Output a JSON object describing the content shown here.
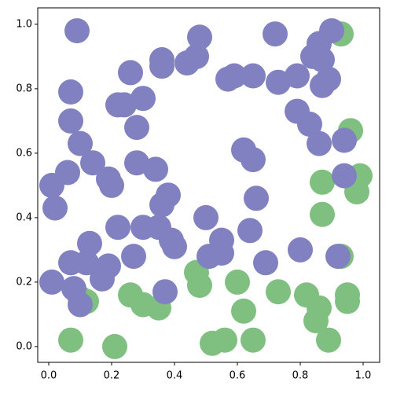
{
  "chart_data": {
    "type": "scatter",
    "xlim": [
      -0.035,
      1.0525
    ],
    "ylim": [
      -0.049,
      1.051
    ],
    "xticks": [
      {
        "value": 0,
        "label": "0.0"
      },
      {
        "value": 0.2,
        "label": "0.2"
      },
      {
        "value": 0.4,
        "label": "0.4"
      },
      {
        "value": 0.6,
        "label": "0.6"
      },
      {
        "value": 0.8,
        "label": "0.8"
      },
      {
        "value": 1,
        "label": "1.0"
      }
    ],
    "yticks": [
      {
        "value": 0,
        "label": "0.0"
      },
      {
        "value": 0.2,
        "label": "0.2"
      },
      {
        "value": 0.4,
        "label": "0.4"
      },
      {
        "value": 0.6,
        "label": "0.6"
      },
      {
        "value": 0.8,
        "label": "0.8"
      },
      {
        "value": 1,
        "label": "1.0"
      }
    ],
    "series": [
      {
        "color": "#7fbf7f",
        "x": [
          0.93,
          0.96,
          0.99,
          0.87,
          0.98,
          0.87,
          0.93,
          0.47,
          0.48,
          0.6,
          0.73,
          0.82,
          0.86,
          0.95,
          0.95,
          0.85,
          0.89,
          0.62,
          0.65,
          0.56,
          0.52,
          0.26,
          0.3,
          0.35,
          0.21,
          0.07,
          0.12,
          0.1
        ],
        "values": [
          0.97,
          0.67,
          0.53,
          0.51,
          0.48,
          0.41,
          0.28,
          0.23,
          0.19,
          0.2,
          0.17,
          0.16,
          0.12,
          0.16,
          0.14,
          0.08,
          0.02,
          0.11,
          0.02,
          0.02,
          0.01,
          0.16,
          0.13,
          0.12,
          0.0,
          0.02,
          0.14,
          0.15
        ]
      },
      {
        "color": "#8181c2",
        "x": [
          0.09,
          0.48,
          0.72,
          0.9,
          0.86,
          0.84,
          0.87,
          0.89,
          0.87,
          0.79,
          0.73,
          0.65,
          0.59,
          0.57,
          0.47,
          0.44,
          0.36,
          0.36,
          0.26,
          0.07,
          0.3,
          0.22,
          0.24,
          0.28,
          0.07,
          0.1,
          0.79,
          0.83,
          0.86,
          0.94,
          0.62,
          0.65,
          0.06,
          0.14,
          0.28,
          0.34,
          0.94,
          0.01,
          0.02,
          0.19,
          0.2,
          0.38,
          0.36,
          0.66,
          0.5,
          0.22,
          0.3,
          0.35,
          0.39,
          0.4,
          0.55,
          0.51,
          0.55,
          0.64,
          0.69,
          0.8,
          0.92,
          0.27,
          0.13,
          0.07,
          0.12,
          0.19,
          0.17,
          0.01,
          0.08,
          0.1,
          0.37
        ],
        "values": [
          0.98,
          0.96,
          0.97,
          0.98,
          0.94,
          0.9,
          0.89,
          0.83,
          0.81,
          0.84,
          0.82,
          0.84,
          0.84,
          0.83,
          0.9,
          0.88,
          0.89,
          0.87,
          0.85,
          0.79,
          0.77,
          0.75,
          0.75,
          0.68,
          0.7,
          0.63,
          0.73,
          0.69,
          0.63,
          0.64,
          0.61,
          0.58,
          0.54,
          0.57,
          0.57,
          0.55,
          0.53,
          0.5,
          0.43,
          0.52,
          0.5,
          0.47,
          0.44,
          0.46,
          0.4,
          0.37,
          0.37,
          0.37,
          0.33,
          0.31,
          0.33,
          0.28,
          0.29,
          0.36,
          0.26,
          0.3,
          0.28,
          0.28,
          0.32,
          0.26,
          0.26,
          0.25,
          0.21,
          0.2,
          0.18,
          0.13,
          0.17
        ]
      }
    ]
  }
}
